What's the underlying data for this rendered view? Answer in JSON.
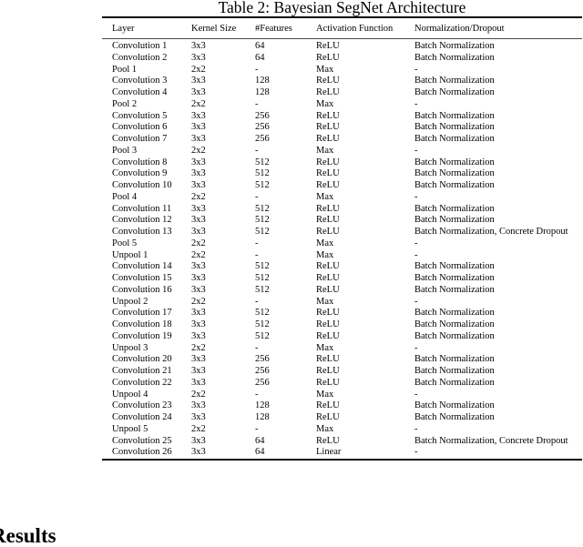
{
  "caption": "Table 2: Bayesian SegNet Architecture",
  "section_heading": "Results",
  "table": {
    "columns": [
      "Layer",
      "Kernel Size",
      "#Features",
      "Activation Function",
      "Normalization/Dropout"
    ],
    "rows": [
      [
        "Convolution 1",
        "3x3",
        "64",
        "ReLU",
        "Batch Normalization"
      ],
      [
        "Convolution 2",
        "3x3",
        "64",
        "ReLU",
        "Batch Normalization"
      ],
      [
        "Pool 1",
        "2x2",
        "-",
        "Max",
        "-"
      ],
      [
        "Convolution 3",
        "3x3",
        "128",
        "ReLU",
        "Batch Normalization"
      ],
      [
        "Convolution 4",
        "3x3",
        "128",
        "ReLU",
        "Batch Normalization"
      ],
      [
        "Pool 2",
        "2x2",
        "-",
        "Max",
        "-"
      ],
      [
        "Convolution 5",
        "3x3",
        "256",
        "ReLU",
        "Batch Normalization"
      ],
      [
        "Convolution 6",
        "3x3",
        "256",
        "ReLU",
        "Batch Normalization"
      ],
      [
        "Convolution 7",
        "3x3",
        "256",
        "ReLU",
        "Batch Normalization"
      ],
      [
        "Pool 3",
        "2x2",
        "-",
        "Max",
        "-"
      ],
      [
        "Convolution 8",
        "3x3",
        "512",
        "ReLU",
        "Batch Normalization"
      ],
      [
        "Convolution 9",
        "3x3",
        "512",
        "ReLU",
        "Batch Normalization"
      ],
      [
        "Convolution 10",
        "3x3",
        "512",
        "ReLU",
        "Batch Normalization"
      ],
      [
        "Pool 4",
        "2x2",
        "-",
        "Max",
        "-"
      ],
      [
        "Convolution 11",
        "3x3",
        "512",
        "ReLU",
        "Batch Normalization"
      ],
      [
        "Convolution 12",
        "3x3",
        "512",
        "ReLU",
        "Batch Normalization"
      ],
      [
        "Convolution 13",
        "3x3",
        "512",
        "ReLU",
        "Batch Normalization, Concrete Dropout"
      ],
      [
        "Pool 5",
        "2x2",
        "-",
        "Max",
        "-"
      ],
      [
        "Unpool 1",
        "2x2",
        "-",
        "Max",
        "-"
      ],
      [
        "Convolution 14",
        "3x3",
        "512",
        "ReLU",
        "Batch Normalization"
      ],
      [
        "Convolution 15",
        "3x3",
        "512",
        "ReLU",
        "Batch Normalization"
      ],
      [
        "Convolution 16",
        "3x3",
        "512",
        "ReLU",
        "Batch Normalization"
      ],
      [
        "Unpool 2",
        "2x2",
        "-",
        "Max",
        "-"
      ],
      [
        "Convolution 17",
        "3x3",
        "512",
        "ReLU",
        "Batch Normalization"
      ],
      [
        "Convolution 18",
        "3x3",
        "512",
        "ReLU",
        "Batch Normalization"
      ],
      [
        "Convolution 19",
        "3x3",
        "512",
        "ReLU",
        "Batch Normalization"
      ],
      [
        "Unpool 3",
        "2x2",
        "-",
        "Max",
        "-"
      ],
      [
        "Convolution 20",
        "3x3",
        "256",
        "ReLU",
        "Batch Normalization"
      ],
      [
        "Convolution 21",
        "3x3",
        "256",
        "ReLU",
        "Batch Normalization"
      ],
      [
        "Convolution 22",
        "3x3",
        "256",
        "ReLU",
        "Batch Normalization"
      ],
      [
        "Unpool 4",
        "2x2",
        "-",
        "Max",
        "-"
      ],
      [
        "Convolution 23",
        "3x3",
        "128",
        "ReLU",
        "Batch Normalization"
      ],
      [
        "Convolution 24",
        "3x3",
        "128",
        "ReLU",
        "Batch Normalization"
      ],
      [
        "Unpool 5",
        "2x2",
        "-",
        "Max",
        "-"
      ],
      [
        "Convolution 25",
        "3x3",
        "64",
        "ReLU",
        "Batch Normalization, Concrete Dropout"
      ],
      [
        "Convolution 26",
        "3x3",
        "64",
        "Linear",
        "-"
      ]
    ]
  }
}
